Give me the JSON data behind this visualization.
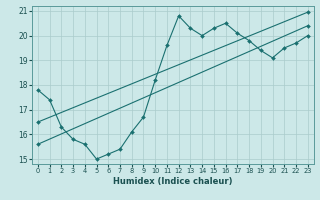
{
  "xlabel": "Humidex (Indice chaleur)",
  "background_color": "#cce8e8",
  "grid_color": "#aacccc",
  "line_color": "#1a7070",
  "xlim": [
    -0.5,
    23.5
  ],
  "ylim": [
    14.8,
    21.2
  ],
  "yticks": [
    15,
    16,
    17,
    18,
    19,
    20,
    21
  ],
  "xticks": [
    0,
    1,
    2,
    3,
    4,
    5,
    6,
    7,
    8,
    9,
    10,
    11,
    12,
    13,
    14,
    15,
    16,
    17,
    18,
    19,
    20,
    21,
    22,
    23
  ],
  "curve1_x": [
    0,
    1,
    2,
    3,
    4,
    5,
    6,
    7,
    8,
    9,
    10,
    11,
    12,
    13,
    14,
    15,
    16,
    17,
    18,
    19,
    20,
    21,
    22,
    23
  ],
  "curve1_y": [
    17.8,
    17.4,
    16.3,
    15.8,
    15.6,
    15.0,
    15.2,
    15.4,
    16.1,
    16.7,
    18.2,
    19.6,
    20.8,
    20.3,
    20.0,
    20.3,
    20.5,
    20.1,
    19.8,
    19.4,
    19.1,
    19.5,
    19.7,
    20.0
  ],
  "curve2_x": [
    0,
    23
  ],
  "curve2_y": [
    15.6,
    20.4
  ],
  "curve3_x": [
    0,
    23
  ],
  "curve3_y": [
    16.5,
    20.95
  ]
}
